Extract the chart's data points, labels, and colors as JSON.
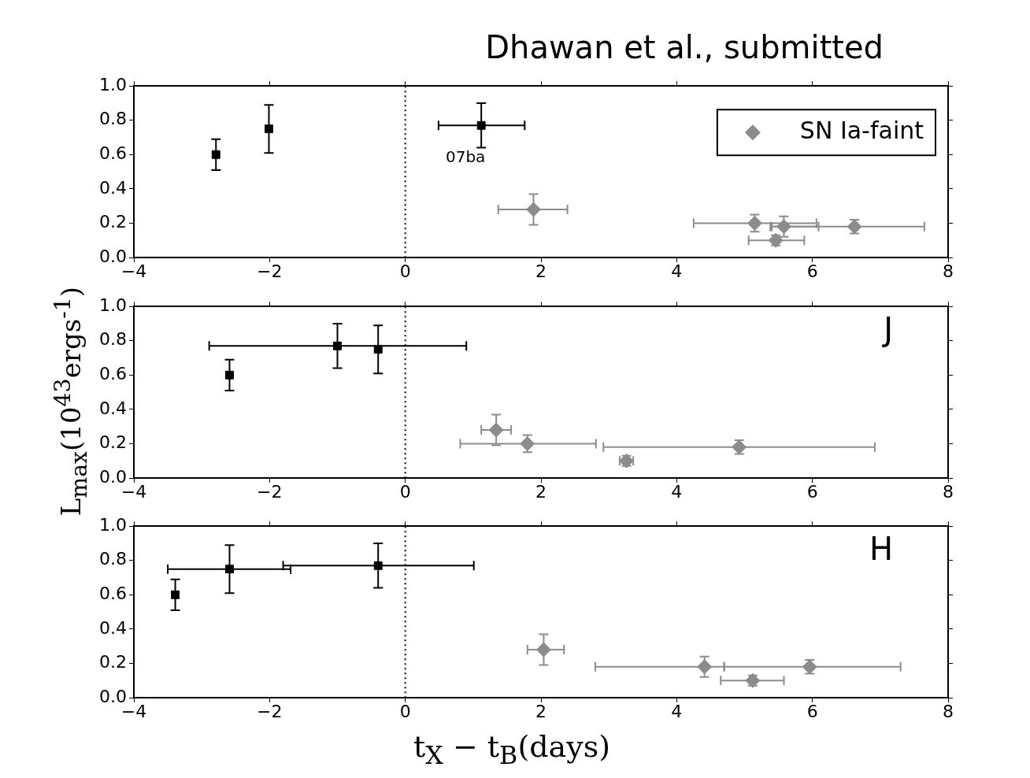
{
  "chart_data": [
    {
      "type": "scatter",
      "title": "Dhawan et al., submitted",
      "xlim": [
        -4,
        8
      ],
      "ylim": [
        0,
        1
      ],
      "xticks": [
        -4,
        -2,
        0,
        2,
        4,
        6,
        8
      ],
      "yticks": [
        {
          "value": 0,
          "label": "0.0"
        },
        {
          "value": 0.2,
          "label": "0.2"
        },
        {
          "value": 0.4,
          "label": "0.4"
        },
        {
          "value": 0.6,
          "label": "0.6"
        },
        {
          "value": 0.8,
          "label": "0.8"
        },
        {
          "value": 1,
          "label": "1.0"
        }
      ],
      "grid": false,
      "legend": "top right",
      "ref_lines": [
        {
          "axis": "x",
          "value": 0,
          "line_style": "dotted",
          "color": "#000000"
        }
      ],
      "annotations": [
        {
          "text": "07ba",
          "x": 1.12,
          "y": 0.77
        }
      ],
      "series": [
        {
          "color": "#000000",
          "marker": "square",
          "x": [
            -2.79,
            -2.01,
            1.12
          ],
          "values": [
            0.6,
            0.75,
            0.77
          ],
          "errors": [
            0.09,
            0.14,
            0.13
          ],
          "xerrors": [
            null,
            null,
            [
              0.49,
              1.76
            ]
          ]
        },
        {
          "name": "SN Ia-faint",
          "color": "#8c8c8c",
          "marker": "diamond",
          "x": [
            1.89,
            5.15,
            5.58,
            6.62,
            5.46
          ],
          "values": [
            0.28,
            0.2,
            0.18,
            0.18,
            0.1
          ],
          "errors": [
            0.09,
            0.05,
            0.06,
            0.04,
            0.03
          ],
          "xerrors": [
            [
              1.37,
              2.39
            ],
            [
              4.25,
              6.06
            ],
            [
              5.38,
              6.09
            ],
            [
              5.4,
              7.65
            ],
            [
              5.06,
              5.88
            ]
          ]
        }
      ]
    },
    {
      "type": "scatter",
      "ylabel": "L$_{max}$(10$^{43}$ergs$^{-1}$)",
      "xlim": [
        -4,
        8
      ],
      "ylim": [
        0,
        1
      ],
      "xticks": [
        -4,
        -2,
        0,
        2,
        4,
        6,
        8
      ],
      "yticks": [
        {
          "value": 0,
          "label": "0.0"
        },
        {
          "value": 0.2,
          "label": "0.2"
        },
        {
          "value": 0.4,
          "label": "0.4"
        },
        {
          "value": 0.6,
          "label": "0.6"
        },
        {
          "value": 0.8,
          "label": "0.8"
        },
        {
          "value": 1,
          "label": "1.0"
        }
      ],
      "grid": false,
      "ref_lines": [
        {
          "axis": "x",
          "value": 0,
          "line_style": "dotted",
          "color": "#000000"
        }
      ],
      "annotations": [
        "J"
      ],
      "series": [
        {
          "color": "#000000",
          "marker": "square",
          "x": [
            -2.59,
            -1.0,
            -0.4
          ],
          "values": [
            0.6,
            0.77,
            0.75
          ],
          "errors": [
            0.09,
            0.13,
            0.14
          ],
          "xerrors": [
            null,
            [
              -2.89,
              0.9
            ],
            null
          ]
        },
        {
          "color": "#8c8c8c",
          "marker": "diamond",
          "x": [
            1.34,
            1.8,
            3.26,
            4.92
          ],
          "values": [
            0.28,
            0.2,
            0.1,
            0.18
          ],
          "errors": [
            0.09,
            0.05,
            0.03,
            0.04
          ],
          "xerrors": [
            [
              1.12,
              1.56
            ],
            [
              0.81,
              2.81
            ],
            [
              3.16,
              3.36
            ],
            [
              2.92,
              6.92
            ]
          ]
        }
      ]
    },
    {
      "type": "scatter",
      "xlabel": "t$_{X}$ − t$_{B}$(days)",
      "xlim": [
        -4,
        8
      ],
      "ylim": [
        0,
        1
      ],
      "xticks": [
        -4,
        -2,
        0,
        2,
        4,
        6,
        8
      ],
      "yticks": [
        {
          "value": 0,
          "label": "0.0"
        },
        {
          "value": 0.2,
          "label": "0.2"
        },
        {
          "value": 0.4,
          "label": "0.4"
        },
        {
          "value": 0.6,
          "label": "0.6"
        },
        {
          "value": 0.8,
          "label": "0.8"
        },
        {
          "value": 1,
          "label": "1.0"
        }
      ],
      "grid": false,
      "ref_lines": [
        {
          "axis": "x",
          "value": 0,
          "line_style": "dotted",
          "color": "#000000"
        }
      ],
      "annotations": [
        "H"
      ],
      "series": [
        {
          "color": "#000000",
          "marker": "square",
          "x": [
            -3.39,
            -2.59,
            -0.4
          ],
          "values": [
            0.6,
            0.75,
            0.77
          ],
          "errors": [
            0.09,
            0.14,
            0.13
          ],
          "xerrors": [
            null,
            [
              -3.5,
              -1.69
            ],
            [
              -1.8,
              1.01
            ]
          ]
        },
        {
          "color": "#8c8c8c",
          "marker": "diamond",
          "x": [
            2.04,
            4.41,
            5.96,
            5.12
          ],
          "values": [
            0.28,
            0.18,
            0.18,
            0.1
          ],
          "errors": [
            0.09,
            0.06,
            0.04,
            0.03
          ],
          "xerrors": [
            [
              1.8,
              2.34
            ],
            [
              2.8,
              4.7
            ],
            [
              4.7,
              7.3
            ],
            [
              4.65,
              5.58
            ]
          ]
        }
      ]
    }
  ]
}
